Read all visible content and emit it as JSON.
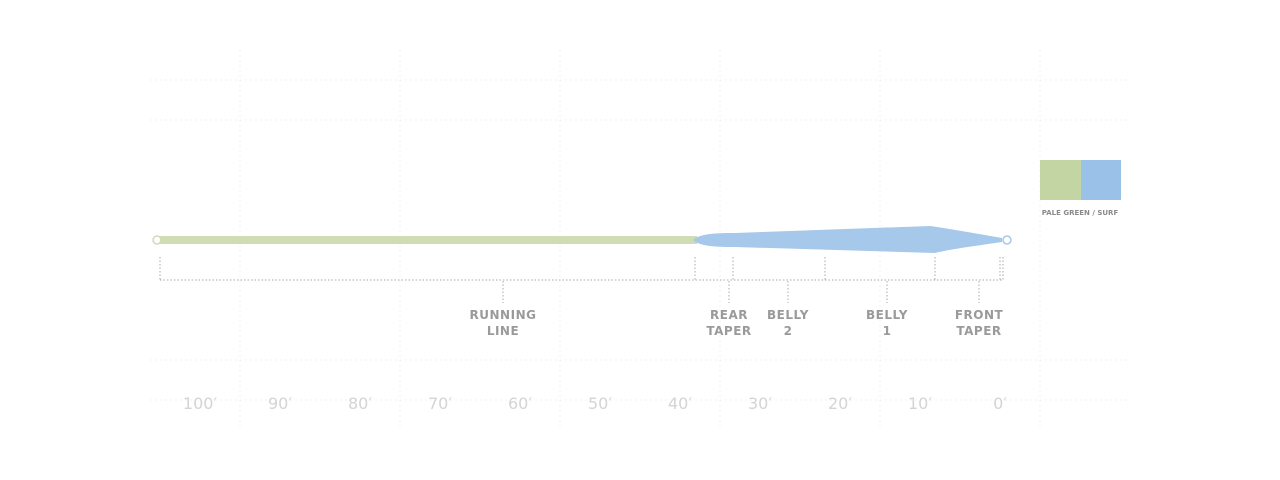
{
  "diagram": {
    "segments": [
      {
        "lines": [
          "RUNNING",
          "LINE"
        ]
      },
      {
        "lines": [
          "REAR",
          "TAPER"
        ]
      },
      {
        "lines": [
          "BELLY",
          "2"
        ]
      },
      {
        "lines": [
          "BELLY",
          "1"
        ]
      },
      {
        "lines": [
          "FRONT",
          "TAPER"
        ]
      }
    ],
    "axis": {
      "ticks": [
        "100′",
        "90′",
        "80′",
        "70′",
        "60′",
        "50′",
        "40′",
        "30′",
        "20′",
        "10′",
        "0′"
      ]
    },
    "legend": {
      "label": "PALE GREEN / SURF"
    }
  }
}
